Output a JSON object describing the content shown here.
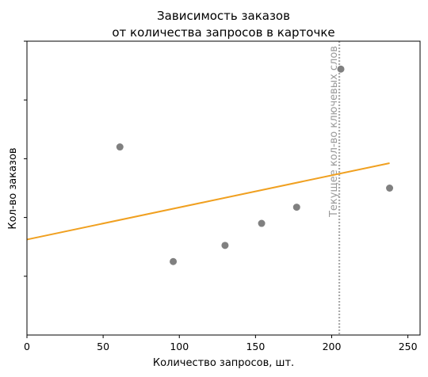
{
  "chart_data": {
    "type": "scatter",
    "title_lines": [
      "Зависимость заказов",
      "от количества запросов в карточке"
    ],
    "xlabel": "Количество запросов, шт.",
    "ylabel": "Кол-во заказов",
    "xlim": [
      0,
      258
    ],
    "ylim": [
      0,
      100
    ],
    "x_ticks": [
      0,
      50,
      100,
      150,
      200,
      250
    ],
    "y_tick_values": [
      20,
      40,
      60,
      80,
      100
    ],
    "y_tick_labels_visible": false,
    "grid": false,
    "points": {
      "color": "#808080",
      "x": [
        61,
        96,
        130,
        154,
        177,
        206,
        238
      ],
      "y": [
        64,
        25,
        30.5,
        38,
        43.5,
        90.5,
        50
      ]
    },
    "trend_line": {
      "color": "#f0a020",
      "x": [
        0,
        238
      ],
      "y": [
        32.5,
        58.5
      ]
    },
    "vertical_line": {
      "x": 205,
      "color": "#aaaaaa",
      "style": "dotted",
      "label": "Текущее кол-во ключевых слов"
    }
  }
}
